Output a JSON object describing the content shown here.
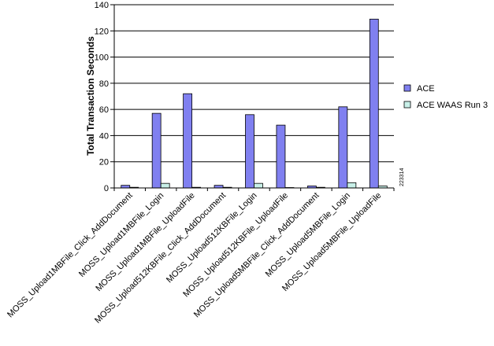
{
  "chart_data": {
    "type": "bar",
    "ylabel": "Total Transaction Seconds",
    "ylim": [
      0,
      140
    ],
    "yticks": [
      0,
      20,
      40,
      60,
      80,
      100,
      120,
      140
    ],
    "categories": [
      "MOSS_Upload1MBFile_Click_AddDocument",
      "MOSS_Upload1MBFile_Login",
      "MOSS_Upload1MBFile_UploadFile",
      "MOSS_Upload512KBFile_Click_AddDocument",
      "MOSS_Upload512KBFile_Login",
      "MOSS_Upload512KBFile_UploadFile",
      "MOSS_Upload5MBFile_Click_AddDocument",
      "MOSS_Upload5MBFile_Login",
      "MOSS_Upload5MBFile_UploadFile"
    ],
    "series": [
      {
        "name": "ACE",
        "color": "#8080f0",
        "values": [
          2,
          57,
          72,
          2,
          56,
          48,
          1.5,
          62,
          129
        ]
      },
      {
        "name": "ACE WAAS Run 3",
        "color": "#c8f0e8",
        "values": [
          0.5,
          3.5,
          0.5,
          0.5,
          3.5,
          0.3,
          0.5,
          4,
          1.5
        ]
      }
    ],
    "legend_position": "right",
    "grid": "horizontal",
    "annotation": "223314"
  }
}
